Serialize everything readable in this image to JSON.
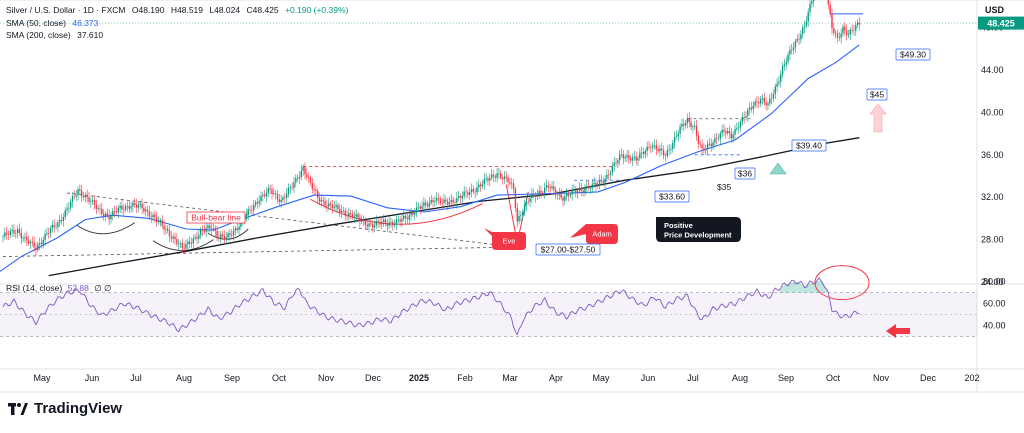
{
  "legend": {
    "symbol": "Silver / U.S. Dollar · 1D · FXCM",
    "open": "O48.190",
    "high": "H48.519",
    "low": "L48.024",
    "close": "C48.425",
    "change": "+0.190 (+0.39%)",
    "sma50_label": "SMA (50, close)",
    "sma50_value": "46.373",
    "sma200_label": "SMA (200, close)",
    "sma200_value": "37.610"
  },
  "rsi_legend": {
    "label": "RSI (14, close)",
    "value": "52.88",
    "extra": "∅ ∅"
  },
  "currency": "USD",
  "branding": "TradingView",
  "colors": {
    "up": "#089981",
    "down": "#f23645",
    "sma50": "#2962ff",
    "sma200": "#131722",
    "rsi": "#7e57c2",
    "annotation": "#2962ff"
  },
  "chart_data": {
    "type": "candlestick",
    "price_axis": {
      "ticks": [
        24,
        28,
        32,
        36,
        40,
        44,
        48,
        52
      ],
      "range": [
        23.5,
        55.5
      ]
    },
    "rsi_axis": {
      "ticks": [
        40,
        60,
        80
      ],
      "bands": [
        30,
        70
      ],
      "midline": 50
    },
    "x_labels": [
      "May",
      "Jun",
      "Jul",
      "Aug",
      "Sep",
      "Oct",
      "Nov",
      "Dec",
      "2025",
      "Feb",
      "Mar",
      "Apr",
      "May",
      "Jun",
      "Jul",
      "Aug",
      "Sep",
      "Oct",
      "Nov",
      "Dec",
      "202"
    ],
    "last_price": "48.425",
    "price_path": [
      [
        0,
        28.3
      ],
      [
        8,
        28.9
      ],
      [
        12,
        28.0
      ],
      [
        18,
        27.2
      ],
      [
        24,
        28.6
      ],
      [
        30,
        29.5
      ],
      [
        36,
        31.2
      ],
      [
        41,
        32.6
      ],
      [
        46,
        32.0
      ],
      [
        52,
        30.8
      ],
      [
        58,
        30.2
      ],
      [
        64,
        30.9
      ],
      [
        70,
        31.3
      ],
      [
        76,
        31.0
      ],
      [
        82,
        30.2
      ],
      [
        88,
        29.1
      ],
      [
        94,
        28.0
      ],
      [
        98,
        27.1
      ],
      [
        102,
        27.8
      ],
      [
        108,
        28.6
      ],
      [
        114,
        29.3
      ],
      [
        118,
        28.3
      ],
      [
        122,
        28.1
      ],
      [
        128,
        29.2
      ],
      [
        134,
        30.5
      ],
      [
        140,
        31.9
      ],
      [
        146,
        32.6
      ],
      [
        152,
        31.7
      ],
      [
        158,
        33.0
      ],
      [
        162,
        34.2
      ],
      [
        164,
        34.8
      ],
      [
        168,
        33.2
      ],
      [
        172,
        32.0
      ],
      [
        178,
        31.2
      ],
      [
        184,
        30.8
      ],
      [
        190,
        30.3
      ],
      [
        196,
        29.8
      ],
      [
        202,
        29.3
      ],
      [
        208,
        29.7
      ],
      [
        214,
        29.5
      ],
      [
        220,
        30.1
      ],
      [
        226,
        30.8
      ],
      [
        232,
        31.4
      ],
      [
        236,
        31.9
      ],
      [
        240,
        31.4
      ],
      [
        246,
        31.7
      ],
      [
        252,
        32.2
      ],
      [
        258,
        32.8
      ],
      [
        262,
        33.3
      ],
      [
        266,
        33.8
      ],
      [
        270,
        34.3
      ],
      [
        274,
        33.7
      ],
      [
        276,
        33.5
      ],
      [
        279,
        32.8
      ],
      [
        281,
        29.8
      ],
      [
        284,
        30.8
      ],
      [
        288,
        31.9
      ],
      [
        292,
        32.4
      ],
      [
        298,
        33.0
      ],
      [
        302,
        32.4
      ],
      [
        306,
        32.0
      ],
      [
        310,
        32.3
      ],
      [
        314,
        32.6
      ],
      [
        318,
        32.9
      ],
      [
        322,
        33.0
      ],
      [
        326,
        33.4
      ],
      [
        330,
        34.0
      ],
      [
        334,
        35.0
      ],
      [
        338,
        36.0
      ],
      [
        342,
        35.8
      ],
      [
        346,
        35.5
      ],
      [
        350,
        36.3
      ],
      [
        354,
        37.0
      ],
      [
        358,
        36.4
      ],
      [
        362,
        36.0
      ],
      [
        366,
        37.2
      ],
      [
        370,
        38.4
      ],
      [
        374,
        39.3
      ],
      [
        378,
        38.6
      ],
      [
        380,
        37.2
      ],
      [
        382,
        36.3
      ],
      [
        386,
        37.0
      ],
      [
        390,
        37.6
      ],
      [
        394,
        38.2
      ],
      [
        398,
        37.8
      ],
      [
        402,
        38.9
      ],
      [
        406,
        39.7
      ],
      [
        410,
        40.8
      ],
      [
        414,
        41.3
      ],
      [
        418,
        40.6
      ],
      [
        422,
        42.3
      ],
      [
        426,
        44.2
      ],
      [
        430,
        45.6
      ],
      [
        434,
        46.9
      ],
      [
        438,
        48.2
      ],
      [
        442,
        50.5
      ],
      [
        445,
        52.6
      ],
      [
        447,
        53.7
      ],
      [
        449,
        52.9
      ],
      [
        451,
        50.1
      ],
      [
        453,
        47.9
      ],
      [
        456,
        46.9
      ],
      [
        459,
        48.0
      ],
      [
        462,
        47.4
      ],
      [
        465,
        47.8
      ],
      [
        468,
        48.425
      ]
    ],
    "sma50": [
      [
        -10,
        24.0
      ],
      [
        10,
        26.4
      ],
      [
        30,
        28.2
      ],
      [
        45,
        29.9
      ],
      [
        60,
        30.3
      ],
      [
        80,
        30.0
      ],
      [
        100,
        29.0
      ],
      [
        115,
        28.9
      ],
      [
        130,
        29.9
      ],
      [
        150,
        31.1
      ],
      [
        170,
        32.2
      ],
      [
        190,
        32.1
      ],
      [
        210,
        31.0
      ],
      [
        230,
        30.6
      ],
      [
        250,
        31.1
      ],
      [
        270,
        32.2
      ],
      [
        290,
        32.3
      ],
      [
        310,
        32.4
      ],
      [
        325,
        32.5
      ],
      [
        340,
        33.4
      ],
      [
        360,
        35.0
      ],
      [
        380,
        36.3
      ],
      [
        400,
        37.4
      ],
      [
        420,
        39.9
      ],
      [
        440,
        43.2
      ],
      [
        455,
        44.7
      ],
      [
        468,
        46.373
      ]
    ],
    "sma200": [
      [
        25,
        24.6
      ],
      [
        60,
        25.7
      ],
      [
        100,
        26.9
      ],
      [
        140,
        28.2
      ],
      [
        180,
        29.4
      ],
      [
        220,
        30.5
      ],
      [
        260,
        31.6
      ],
      [
        300,
        32.3
      ],
      [
        340,
        33.6
      ],
      [
        380,
        34.6
      ],
      [
        420,
        36.0
      ],
      [
        450,
        37.1
      ],
      [
        468,
        37.61
      ]
    ],
    "rsi": [
      [
        0,
        57
      ],
      [
        6,
        62
      ],
      [
        12,
        51
      ],
      [
        18,
        43
      ],
      [
        24,
        55
      ],
      [
        30,
        64
      ],
      [
        36,
        70
      ],
      [
        42,
        72
      ],
      [
        48,
        58
      ],
      [
        54,
        49
      ],
      [
        60,
        54
      ],
      [
        66,
        60
      ],
      [
        72,
        57
      ],
      [
        78,
        52
      ],
      [
        84,
        47
      ],
      [
        90,
        43
      ],
      [
        96,
        36
      ],
      [
        100,
        40
      ],
      [
        106,
        47
      ],
      [
        112,
        55
      ],
      [
        118,
        46
      ],
      [
        124,
        52
      ],
      [
        130,
        60
      ],
      [
        136,
        66
      ],
      [
        142,
        72
      ],
      [
        148,
        61
      ],
      [
        154,
        56
      ],
      [
        158,
        68
      ],
      [
        162,
        73
      ],
      [
        166,
        60
      ],
      [
        170,
        55
      ],
      [
        176,
        48
      ],
      [
        182,
        45
      ],
      [
        188,
        43
      ],
      [
        194,
        40
      ],
      [
        200,
        42
      ],
      [
        206,
        46
      ],
      [
        212,
        44
      ],
      [
        218,
        52
      ],
      [
        224,
        58
      ],
      [
        230,
        63
      ],
      [
        236,
        60
      ],
      [
        242,
        54
      ],
      [
        248,
        60
      ],
      [
        254,
        63
      ],
      [
        260,
        66
      ],
      [
        266,
        70
      ],
      [
        270,
        63
      ],
      [
        274,
        55
      ],
      [
        278,
        46
      ],
      [
        281,
        30
      ],
      [
        284,
        45
      ],
      [
        290,
        57
      ],
      [
        296,
        63
      ],
      [
        302,
        52
      ],
      [
        308,
        48
      ],
      [
        314,
        54
      ],
      [
        320,
        57
      ],
      [
        326,
        62
      ],
      [
        332,
        67
      ],
      [
        338,
        72
      ],
      [
        344,
        64
      ],
      [
        350,
        58
      ],
      [
        356,
        66
      ],
      [
        362,
        57
      ],
      [
        368,
        64
      ],
      [
        374,
        67
      ],
      [
        378,
        54
      ],
      [
        382,
        45
      ],
      [
        388,
        55
      ],
      [
        394,
        58
      ],
      [
        400,
        60
      ],
      [
        406,
        66
      ],
      [
        412,
        71
      ],
      [
        418,
        65
      ],
      [
        422,
        72
      ],
      [
        426,
        76
      ],
      [
        430,
        79
      ],
      [
        434,
        80
      ],
      [
        438,
        76
      ],
      [
        442,
        79
      ],
      [
        446,
        81
      ],
      [
        448,
        80
      ],
      [
        451,
        68
      ],
      [
        453,
        55
      ],
      [
        456,
        50
      ],
      [
        460,
        48
      ],
      [
        464,
        50
      ],
      [
        468,
        52.88
      ]
    ],
    "annotations": [
      {
        "text": "Bull-bear line",
        "type": "label"
      },
      {
        "text": "Eve",
        "type": "callout"
      },
      {
        "text": "Adam",
        "type": "callout"
      },
      {
        "text": "Positive\nPrice Development",
        "type": "callout"
      },
      {
        "text": "$27.00-$27.50",
        "type": "price"
      },
      {
        "text": "$33.60",
        "type": "price"
      },
      {
        "text": "$36",
        "type": "price"
      },
      {
        "text": "$35",
        "type": "price"
      },
      {
        "text": "$39.40",
        "type": "price"
      },
      {
        "text": "$45",
        "type": "price"
      },
      {
        "text": "$49.30",
        "type": "price"
      }
    ]
  }
}
